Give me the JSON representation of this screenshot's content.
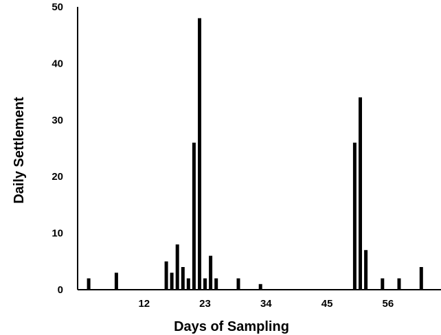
{
  "chart_data": {
    "type": "bar",
    "title": "",
    "xlabel": "Days of Sampling",
    "ylabel": "Daily Settlement",
    "xlim": [
      1,
      62
    ],
    "ylim": [
      0,
      50
    ],
    "x_ticks": [
      12,
      23,
      34,
      45,
      56
    ],
    "y_ticks": [
      0,
      10,
      20,
      30,
      40,
      50
    ],
    "grid": false,
    "bar_color": "#000000",
    "points": [
      {
        "x": 2,
        "y": 2
      },
      {
        "x": 7,
        "y": 3
      },
      {
        "x": 16,
        "y": 5
      },
      {
        "x": 17,
        "y": 3
      },
      {
        "x": 18,
        "y": 8
      },
      {
        "x": 19,
        "y": 4
      },
      {
        "x": 20,
        "y": 2
      },
      {
        "x": 21,
        "y": 26
      },
      {
        "x": 22,
        "y": 48
      },
      {
        "x": 23,
        "y": 2
      },
      {
        "x": 24,
        "y": 6
      },
      {
        "x": 25,
        "y": 2
      },
      {
        "x": 29,
        "y": 2
      },
      {
        "x": 33,
        "y": 1
      },
      {
        "x": 50,
        "y": 26
      },
      {
        "x": 51,
        "y": 34
      },
      {
        "x": 52,
        "y": 7
      },
      {
        "x": 55,
        "y": 2
      },
      {
        "x": 58,
        "y": 2
      },
      {
        "x": 62,
        "y": 4
      }
    ]
  }
}
